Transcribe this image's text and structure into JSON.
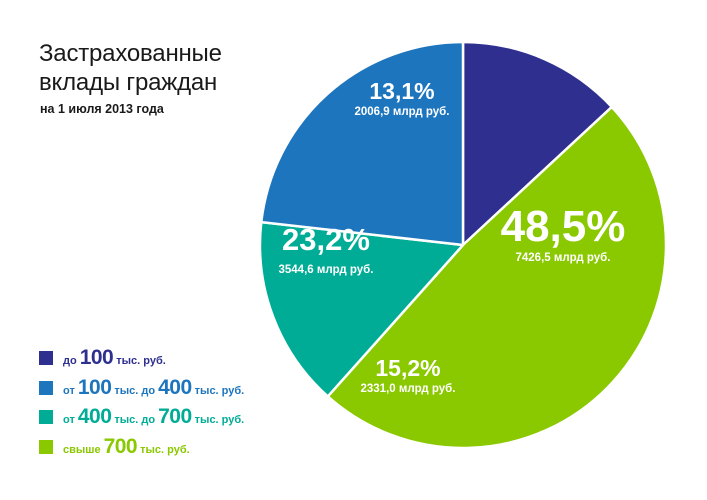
{
  "title": "Застрахованные вклады граждан",
  "subtitle": "на 1 июля 2013 года",
  "chart_data": {
    "type": "pie",
    "title": "Застрахованные вклады граждан",
    "subtitle": "на 1 июля 2013 года",
    "slices": [
      {
        "percent_label": "13,1%",
        "value": 13.1,
        "amount": "2006,9 млрд руб.",
        "color": "#2e2f8f"
      },
      {
        "percent_label": "48,5%",
        "value": 48.5,
        "amount": "7426,5 млрд руб.",
        "color": "#8ac800"
      },
      {
        "percent_label": "15,2%",
        "value": 15.2,
        "amount": "2331,0 млрд руб.",
        "color": "#00ac95"
      },
      {
        "percent_label": "23,2%",
        "value": 23.2,
        "amount": "3544,6 млрд руб.",
        "color": "#1d75be"
      }
    ],
    "legend": [
      {
        "color": "#2e2f8f",
        "text_color": "#2e2f8f",
        "parts": [
          [
            "до",
            "small"
          ],
          [
            "100",
            "big"
          ],
          [
            "тыс. руб.",
            "small"
          ]
        ]
      },
      {
        "color": "#1d75be",
        "text_color": "#1d75be",
        "parts": [
          [
            "от",
            "small"
          ],
          [
            "100",
            "big"
          ],
          [
            "тыс. до",
            "small"
          ],
          [
            "400",
            "big"
          ],
          [
            "тыс. руб.",
            "small"
          ]
        ]
      },
      {
        "color": "#00ac95",
        "text_color": "#00ac95",
        "parts": [
          [
            "от",
            "small"
          ],
          [
            "400",
            "big"
          ],
          [
            "тыс. до",
            "small"
          ],
          [
            "700",
            "big"
          ],
          [
            "тыс. руб.",
            "small"
          ]
        ]
      },
      {
        "color": "#8ac800",
        "text_color": "#8ac800",
        "parts": [
          [
            "свыше",
            "small"
          ],
          [
            "700",
            "big"
          ],
          [
            "тыс. руб.",
            "small"
          ]
        ]
      }
    ]
  }
}
